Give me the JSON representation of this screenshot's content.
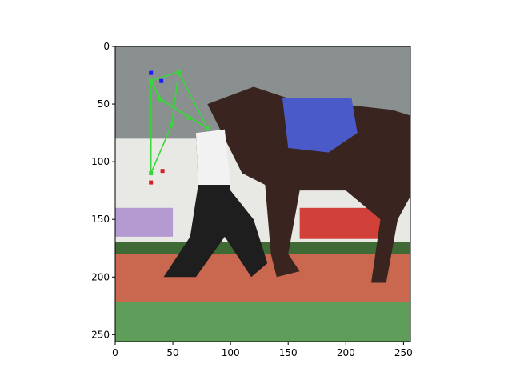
{
  "chart_data": {
    "type": "scatter",
    "image_background": {
      "scene": "photo",
      "colors": {
        "grass": "#5f9e5a",
        "track": "#c9674f",
        "fence": "#e8e8e4",
        "crowd": "#8a8f90",
        "horse": "#3a2420",
        "blanket": "#4a5ac8",
        "flowers_red": "#d2403a",
        "flowers_purple": "#b49ad0"
      }
    },
    "xlim": [
      0,
      256
    ],
    "ylim": [
      256,
      0
    ],
    "xticks": [
      0,
      50,
      100,
      150,
      200,
      250
    ],
    "yticks": [
      0,
      50,
      100,
      150,
      200,
      250
    ],
    "xtick_labels": [
      "0",
      "50",
      "100",
      "150",
      "200",
      "250"
    ],
    "ytick_labels": [
      "0",
      "50",
      "100",
      "150",
      "200",
      "250"
    ],
    "keypoints": [
      {
        "x": 31,
        "y": 23,
        "color": "#1a1aff"
      },
      {
        "x": 40,
        "y": 30,
        "color": "#1a1aff"
      },
      {
        "x": 55,
        "y": 22,
        "color": "#39d639"
      },
      {
        "x": 31,
        "y": 30,
        "color": "#39d639"
      },
      {
        "x": 39,
        "y": 46,
        "color": "#39d639"
      },
      {
        "x": 64,
        "y": 62,
        "color": "#39d639"
      },
      {
        "x": 80,
        "y": 71,
        "color": "#39d639"
      },
      {
        "x": 49,
        "y": 68,
        "color": "#39d639"
      },
      {
        "x": 31,
        "y": 110,
        "color": "#39d639"
      },
      {
        "x": 31,
        "y": 118,
        "color": "#d62020"
      },
      {
        "x": 41,
        "y": 108,
        "color": "#d62020"
      }
    ],
    "skeleton_lines": [
      {
        "points": [
          [
            31,
            30
          ],
          [
            55,
            22
          ],
          [
            80,
            71
          ],
          [
            40,
            46
          ],
          [
            31,
            30
          ]
        ],
        "color": "#39d639"
      },
      {
        "points": [
          [
            55,
            22
          ],
          [
            49,
            68
          ],
          [
            31,
            110
          ]
        ],
        "color": "#39d639"
      },
      {
        "points": [
          [
            31,
            30
          ],
          [
            39,
            46
          ],
          [
            80,
            71
          ]
        ],
        "color": "#39d639"
      },
      {
        "points": [
          [
            31,
            30
          ],
          [
            31,
            110
          ]
        ],
        "color": "#39d639"
      }
    ]
  }
}
